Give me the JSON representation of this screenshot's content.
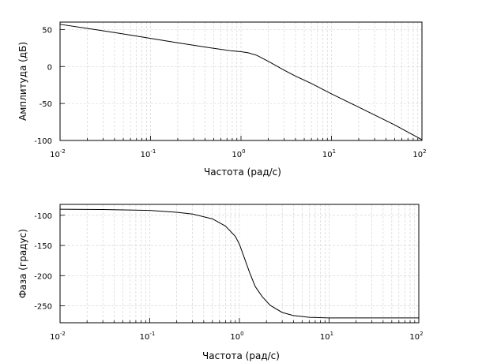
{
  "chart_data": [
    {
      "type": "line",
      "title": "",
      "xlabel": "Частота (рад/с)",
      "ylabel": "Амплитуда (дБ)",
      "xscale": "log",
      "xlim": [
        0.01,
        100
      ],
      "ylim": [
        -100,
        60
      ],
      "grid": true,
      "xticks": [
        {
          "value": 0.01,
          "base": "10",
          "exp": "-2"
        },
        {
          "value": 0.1,
          "base": "10",
          "exp": "-1"
        },
        {
          "value": 1,
          "base": "10",
          "exp": "0"
        },
        {
          "value": 10,
          "base": "10",
          "exp": "1"
        },
        {
          "value": 100,
          "base": "10",
          "exp": "2"
        }
      ],
      "yticks": [
        {
          "value": 50,
          "label": "50"
        },
        {
          "value": 0,
          "label": "0"
        },
        {
          "value": -50,
          "label": "-50"
        },
        {
          "value": -100,
          "label": "-100"
        }
      ],
      "series": [
        {
          "x": [
            0.01,
            0.02,
            0.05,
            0.1,
            0.2,
            0.5,
            0.8,
            1.0,
            1.2,
            1.5,
            2.0,
            3.0,
            4.0,
            6.0,
            10.0,
            20.0,
            50.0,
            100.0
          ],
          "y": [
            57.0,
            51.5,
            44.0,
            38.0,
            32.0,
            24.5,
            21.0,
            20.0,
            18.5,
            15.0,
            7.0,
            -5.0,
            -13.0,
            -23.0,
            -37.0,
            -55.0,
            -79.0,
            -99.0
          ]
        }
      ]
    },
    {
      "type": "line",
      "title": "",
      "xlabel": "Частота (рад/с)",
      "ylabel": "Фаза (градус)",
      "xscale": "log",
      "xlim": [
        0.01,
        100
      ],
      "ylim": [
        -278,
        -82
      ],
      "grid": true,
      "xticks": [
        {
          "value": 0.01,
          "base": "10",
          "exp": "-2"
        },
        {
          "value": 0.1,
          "base": "10",
          "exp": "-1"
        },
        {
          "value": 1,
          "base": "10",
          "exp": "0"
        },
        {
          "value": 10,
          "base": "10",
          "exp": "1"
        },
        {
          "value": 100,
          "base": "10",
          "exp": "2"
        }
      ],
      "yticks": [
        {
          "value": -100,
          "label": "-100"
        },
        {
          "value": -150,
          "label": "-150"
        },
        {
          "value": -200,
          "label": "-200"
        },
        {
          "value": -250,
          "label": "-250"
        }
      ],
      "series": [
        {
          "x": [
            0.01,
            0.03,
            0.1,
            0.2,
            0.3,
            0.5,
            0.7,
            0.9,
            1.0,
            1.1,
            1.3,
            1.5,
            1.8,
            2.2,
            3.0,
            4.0,
            6.0,
            10.0,
            30.0,
            100.0
          ],
          "y": [
            -90.0,
            -90.5,
            -92.0,
            -95.0,
            -98.0,
            -106.0,
            -118.0,
            -135.0,
            -148.0,
            -165.0,
            -195.0,
            -218.0,
            -235.0,
            -249.0,
            -261.0,
            -266.0,
            -269.0,
            -270.0,
            -270.0,
            -270.0
          ]
        }
      ]
    }
  ]
}
